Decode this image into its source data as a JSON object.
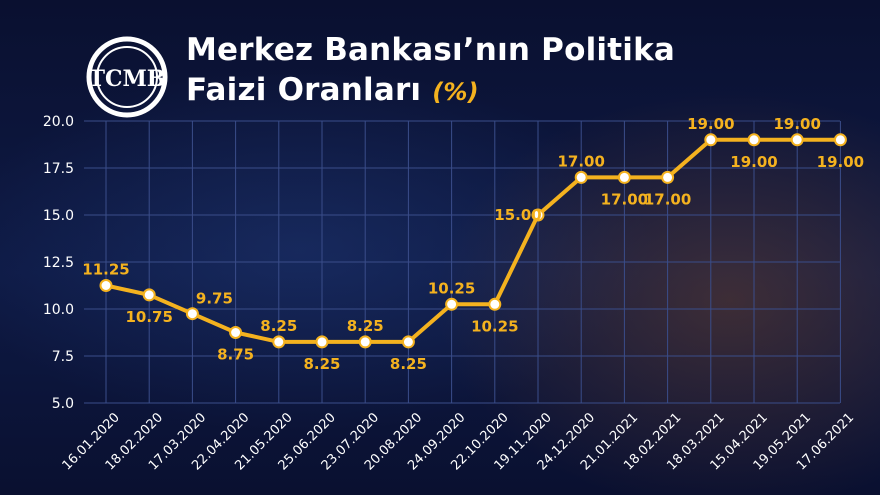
{
  "header": {
    "logo_text": "TCMB",
    "title_line1": "Merkez Bankası’nın Politika",
    "title_line2": "Faizi Oranları",
    "title_unit": "(%)"
  },
  "colors": {
    "line": "#f4b21f",
    "label": "#f4b21f",
    "axis_text": "#ffffff",
    "grid": "#3a4d8a",
    "background": "#0b1233"
  },
  "chart_data": {
    "type": "line",
    "title": "Merkez Bankası’nın Politika Faizi Oranları (%)",
    "xlabel": "",
    "ylabel": "",
    "ylim": [
      5.0,
      20.0
    ],
    "yticks": [
      "5.0",
      "7.5",
      "10.0",
      "12.5",
      "15.0",
      "17.5",
      "20.0"
    ],
    "grid": true,
    "categories": [
      "16.01.2020",
      "18.02.2020",
      "17.03.2020",
      "22.04.2020",
      "21.05.2020",
      "25.06.2020",
      "23.07.2020",
      "20.08.2020",
      "24.09.2020",
      "22.10.2020",
      "19.11.2020",
      "24.12.2020",
      "21.01.2021",
      "18.02.2021",
      "18.03.2021",
      "15.04.2021",
      "19.05.2021",
      "17.06.2021"
    ],
    "values": [
      11.25,
      10.75,
      9.75,
      8.75,
      8.25,
      8.25,
      8.25,
      8.25,
      10.25,
      10.25,
      15.0,
      17.0,
      17.0,
      17.0,
      19.0,
      19.0,
      19.0,
      19.0
    ],
    "data_labels": [
      "11.25",
      "10.75",
      "9.75",
      "8.75",
      "8.25",
      "8.25",
      "8.25",
      "8.25",
      "10.25",
      "10.25",
      "15.00",
      "17.00",
      "17.00",
      "17.00",
      "19.00",
      "19.00",
      "19.00",
      "19.00"
    ]
  }
}
